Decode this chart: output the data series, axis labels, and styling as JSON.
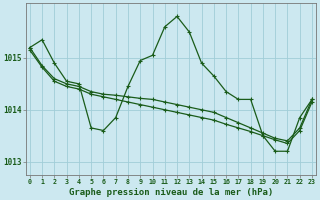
{
  "title": "Graphe pression niveau de la mer (hPa)",
  "background_color": "#cce8f0",
  "plot_bg_color": "#cce8f0",
  "grid_color": "#a0cdd8",
  "line_color": "#1a5c1a",
  "hours": [
    0,
    1,
    2,
    3,
    4,
    5,
    6,
    7,
    8,
    9,
    10,
    11,
    12,
    13,
    14,
    15,
    16,
    17,
    18,
    19,
    20,
    21,
    22,
    23
  ],
  "series1": [
    1015.2,
    1015.35,
    1014.9,
    1014.55,
    1014.5,
    1013.65,
    1013.6,
    1013.85,
    1014.45,
    1014.95,
    1015.05,
    1015.6,
    1015.8,
    1015.5,
    1014.9,
    1014.65,
    1014.35,
    1014.2,
    1014.2,
    1013.5,
    1013.2,
    1013.2,
    1013.85,
    1014.2
  ],
  "series2": [
    1015.2,
    1014.85,
    1014.6,
    1014.5,
    1014.45,
    1014.35,
    1014.3,
    1014.28,
    1014.25,
    1014.22,
    1014.2,
    1014.15,
    1014.1,
    1014.05,
    1014.0,
    1013.95,
    1013.85,
    1013.75,
    1013.65,
    1013.55,
    1013.45,
    1013.4,
    1013.65,
    1014.2
  ],
  "series3": [
    1015.15,
    1014.82,
    1014.55,
    1014.45,
    1014.4,
    1014.3,
    1014.25,
    1014.2,
    1014.15,
    1014.1,
    1014.05,
    1014.0,
    1013.95,
    1013.9,
    1013.85,
    1013.8,
    1013.72,
    1013.65,
    1013.58,
    1013.5,
    1013.42,
    1013.35,
    1013.6,
    1014.15
  ],
  "ylim_min": 1012.75,
  "ylim_max": 1016.05,
  "yticks": [
    1013,
    1014,
    1015
  ],
  "title_fontsize": 6.5
}
